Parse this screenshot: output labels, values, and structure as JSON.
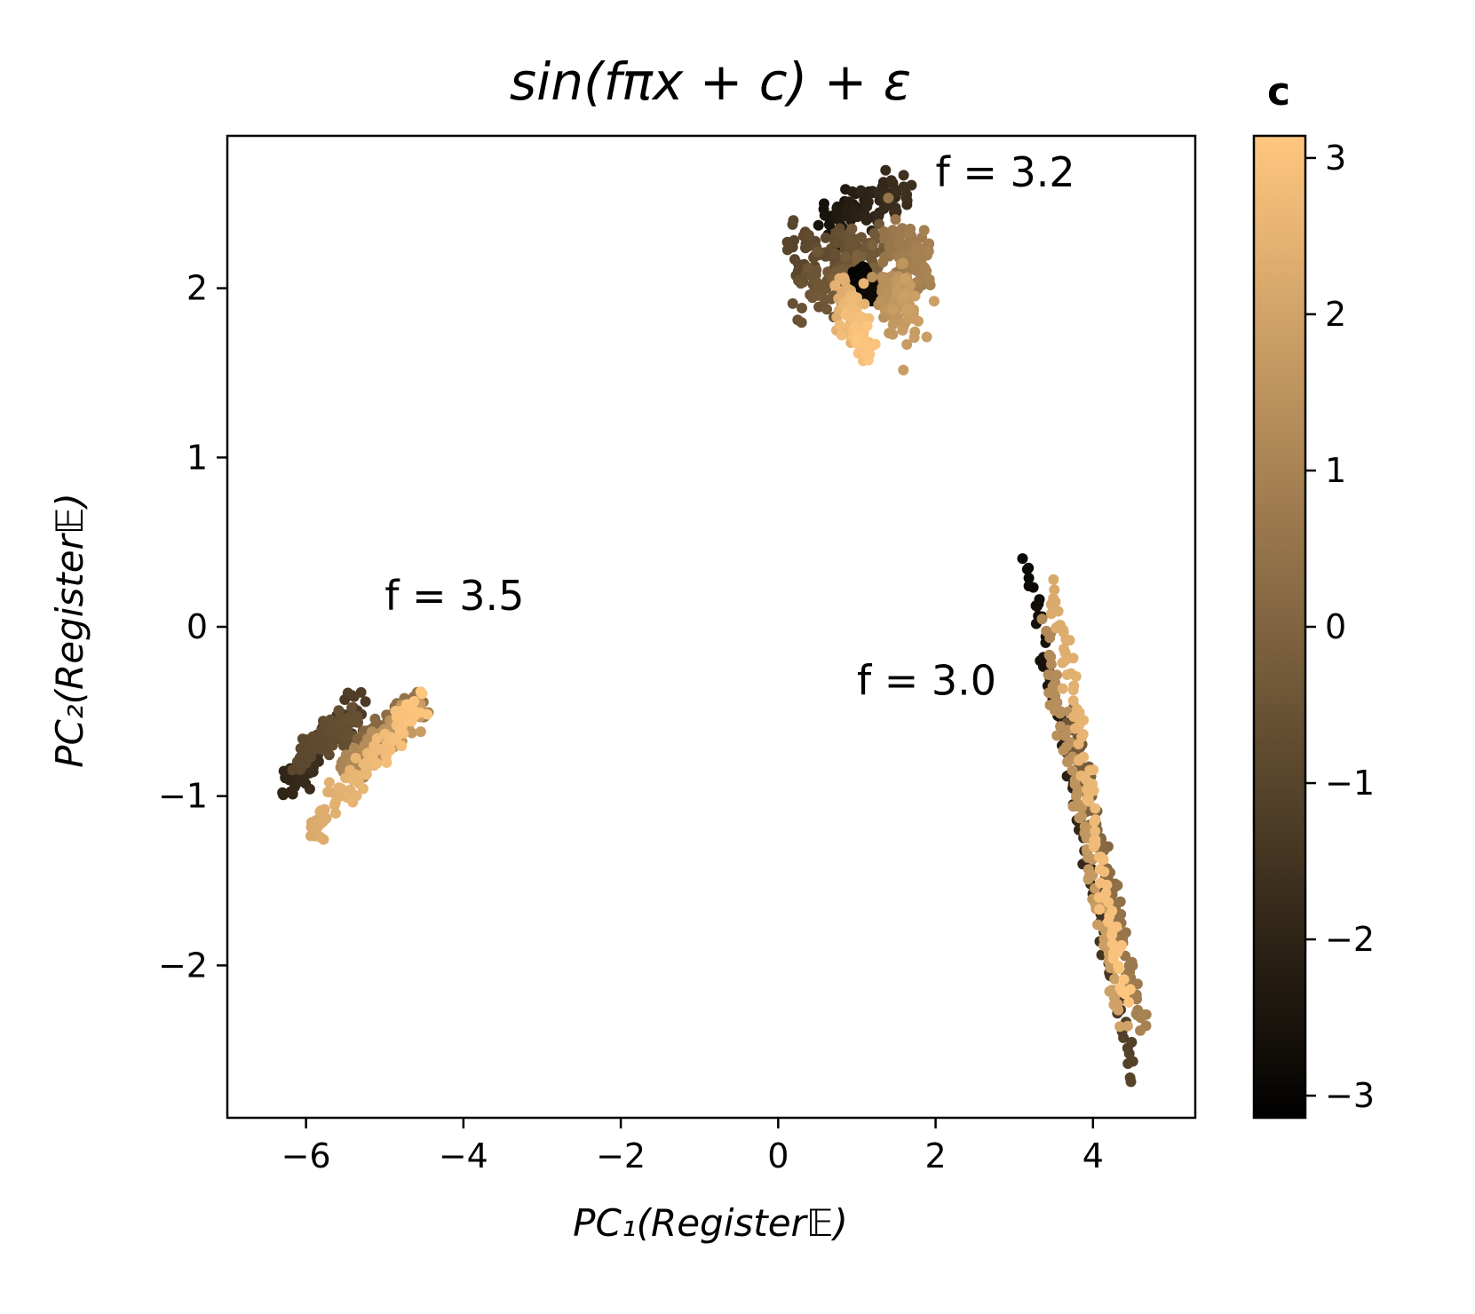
{
  "chart_data": {
    "type": "scatter",
    "title": "sin(fπx + c) + ε",
    "xlabel": "PC₁(Register𝔼)",
    "ylabel": "PC₂(Register𝔼)",
    "xlim": [
      -7.0,
      5.3
    ],
    "ylim": [
      -2.9,
      2.9
    ],
    "x_ticks": [
      -6,
      -4,
      -2,
      0,
      2,
      4
    ],
    "x_tick_labels": [
      "−6",
      "−4",
      "−2",
      "0",
      "2",
      "4"
    ],
    "y_ticks": [
      -2,
      -1,
      0,
      1,
      2
    ],
    "y_tick_labels": [
      "−2",
      "−1",
      "0",
      "1",
      "2"
    ],
    "grid": false,
    "colorbar": {
      "title": "c",
      "colormap": "copper",
      "range": [
        -3.14159,
        3.14159
      ],
      "ticks": [
        -3,
        -2,
        -1,
        0,
        1,
        2,
        3
      ],
      "tick_labels": [
        "−3",
        "−2",
        "−1",
        "0",
        "1",
        "2",
        "3"
      ],
      "color_low": "#000000",
      "color_high": "#ffc77f"
    },
    "annotations": [
      {
        "text": "f = 3.2",
        "x": 2.0,
        "y": 2.6
      },
      {
        "text": "f = 3.5",
        "x": -5.0,
        "y": 0.1
      },
      {
        "text": "f = 3.0",
        "x": 1.0,
        "y": -0.4
      }
    ],
    "clusters": [
      {
        "name": "f = 3.2",
        "segments": [
          {
            "x0": 0.6,
            "y0": 2.4,
            "x1": 1.6,
            "y1": 2.55,
            "spread": 0.07,
            "c0": -2.6,
            "c1": -1.6
          },
          {
            "x0": 0.2,
            "y0": 2.2,
            "x1": 1.3,
            "y1": 2.25,
            "spread": 0.09,
            "c0": -1.0,
            "c1": -0.3
          },
          {
            "x0": 0.3,
            "y0": 2.0,
            "x1": 1.2,
            "y1": 2.05,
            "spread": 0.09,
            "c0": -0.6,
            "c1": 0.0
          },
          {
            "x0": 1.0,
            "y0": 2.05,
            "x1": 1.2,
            "y1": 2.0,
            "spread": 0.04,
            "c0": -3.1,
            "c1": -2.8
          },
          {
            "x0": 1.4,
            "y0": 2.25,
            "x1": 1.9,
            "y1": 2.1,
            "spread": 0.09,
            "c0": 0.5,
            "c1": 1.0
          },
          {
            "x0": 1.4,
            "y0": 2.0,
            "x1": 1.7,
            "y1": 1.85,
            "spread": 0.09,
            "c0": 1.3,
            "c1": 1.9
          },
          {
            "x0": 0.8,
            "y0": 1.95,
            "x1": 1.1,
            "y1": 1.65,
            "spread": 0.09,
            "c0": 2.3,
            "c1": 3.1
          }
        ]
      },
      {
        "name": "f = 3.5",
        "segments": [
          {
            "x0": -6.25,
            "y0": -0.95,
            "x1": -5.3,
            "y1": -0.45,
            "spread": 0.06,
            "c0": -2.0,
            "c1": -1.2
          },
          {
            "x0": -6.1,
            "y0": -0.75,
            "x1": -5.35,
            "y1": -0.55,
            "spread": 0.05,
            "c0": -0.9,
            "c1": -0.6
          },
          {
            "x0": -5.3,
            "y0": -0.7,
            "x1": -4.5,
            "y1": -0.45,
            "spread": 0.05,
            "c0": 0.0,
            "c1": 0.6
          },
          {
            "x0": -5.55,
            "y0": -0.85,
            "x1": -4.55,
            "y1": -0.5,
            "spread": 0.05,
            "c0": 1.0,
            "c1": 1.8
          },
          {
            "x0": -5.95,
            "y0": -1.2,
            "x1": -4.5,
            "y1": -0.45,
            "spread": 0.05,
            "c0": 2.2,
            "c1": 3.1
          }
        ]
      },
      {
        "name": "f = 3.0",
        "segments": [
          {
            "x0": 3.15,
            "y0": 0.4,
            "x1": 4.5,
            "y1": -2.65,
            "spread": 0.03,
            "c0": -2.9,
            "c1": -1.0
          },
          {
            "x0": 3.7,
            "y0": -0.5,
            "x1": 4.65,
            "y1": -2.4,
            "spread": 0.04,
            "c0": -0.5,
            "c1": 1.0
          },
          {
            "x0": 3.4,
            "y0": -0.05,
            "x1": 4.35,
            "y1": -2.35,
            "spread": 0.04,
            "c0": 1.2,
            "c1": 2.0
          },
          {
            "x0": 3.5,
            "y0": 0.25,
            "x1": 4.4,
            "y1": -2.2,
            "spread": 0.04,
            "c0": 2.2,
            "c1": 3.1
          }
        ]
      }
    ]
  }
}
